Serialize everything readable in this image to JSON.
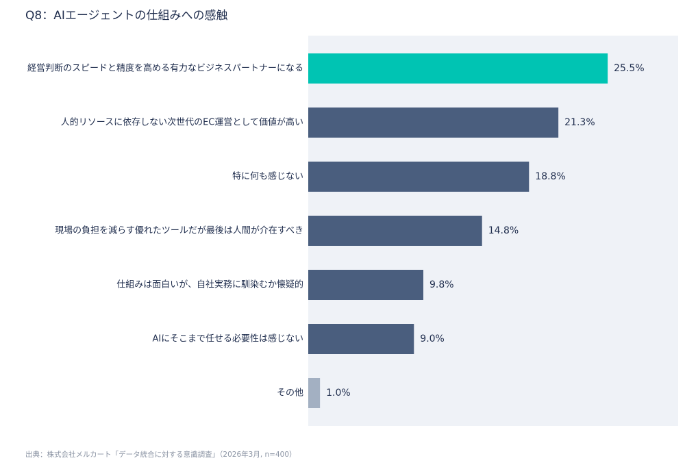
{
  "title": "Q8：AIエージェントの仕組みへの感触",
  "source": "出典：株式会社メルカート「データ統合に対する意識調査」（2026年3月, n=400）",
  "colors": {
    "highlight": "#00c4b3",
    "default": "#4a5e7e",
    "other": "#a3b0c2",
    "plot_bg": "#eff2f7"
  },
  "chart_data": {
    "type": "bar",
    "orientation": "horizontal",
    "categories": [
      "経営判断のスピードと精度を高める有力なビジネスパートナーになる",
      "人的リソースに依存しない次世代のEC運営として価値が高い",
      "特に何も感じない",
      "現場の負担を減らす優れたツールだが最後は人間が介在すべき",
      "仕組みは面白いが、自社実務に馴染むか懐疑的",
      "AIにそこまで任せる必要性は感じない",
      "その他"
    ],
    "values": [
      25.5,
      21.3,
      18.8,
      14.8,
      9.8,
      9.0,
      1.0
    ],
    "value_labels": [
      "25.5%",
      "21.3%",
      "18.8%",
      "14.8%",
      "9.8%",
      "9.0%",
      "1.0%"
    ],
    "bar_colors": [
      "highlight",
      "default",
      "default",
      "default",
      "default",
      "default",
      "other"
    ],
    "xlim": [
      0,
      31.5
    ],
    "grid": false,
    "legend": "none"
  }
}
